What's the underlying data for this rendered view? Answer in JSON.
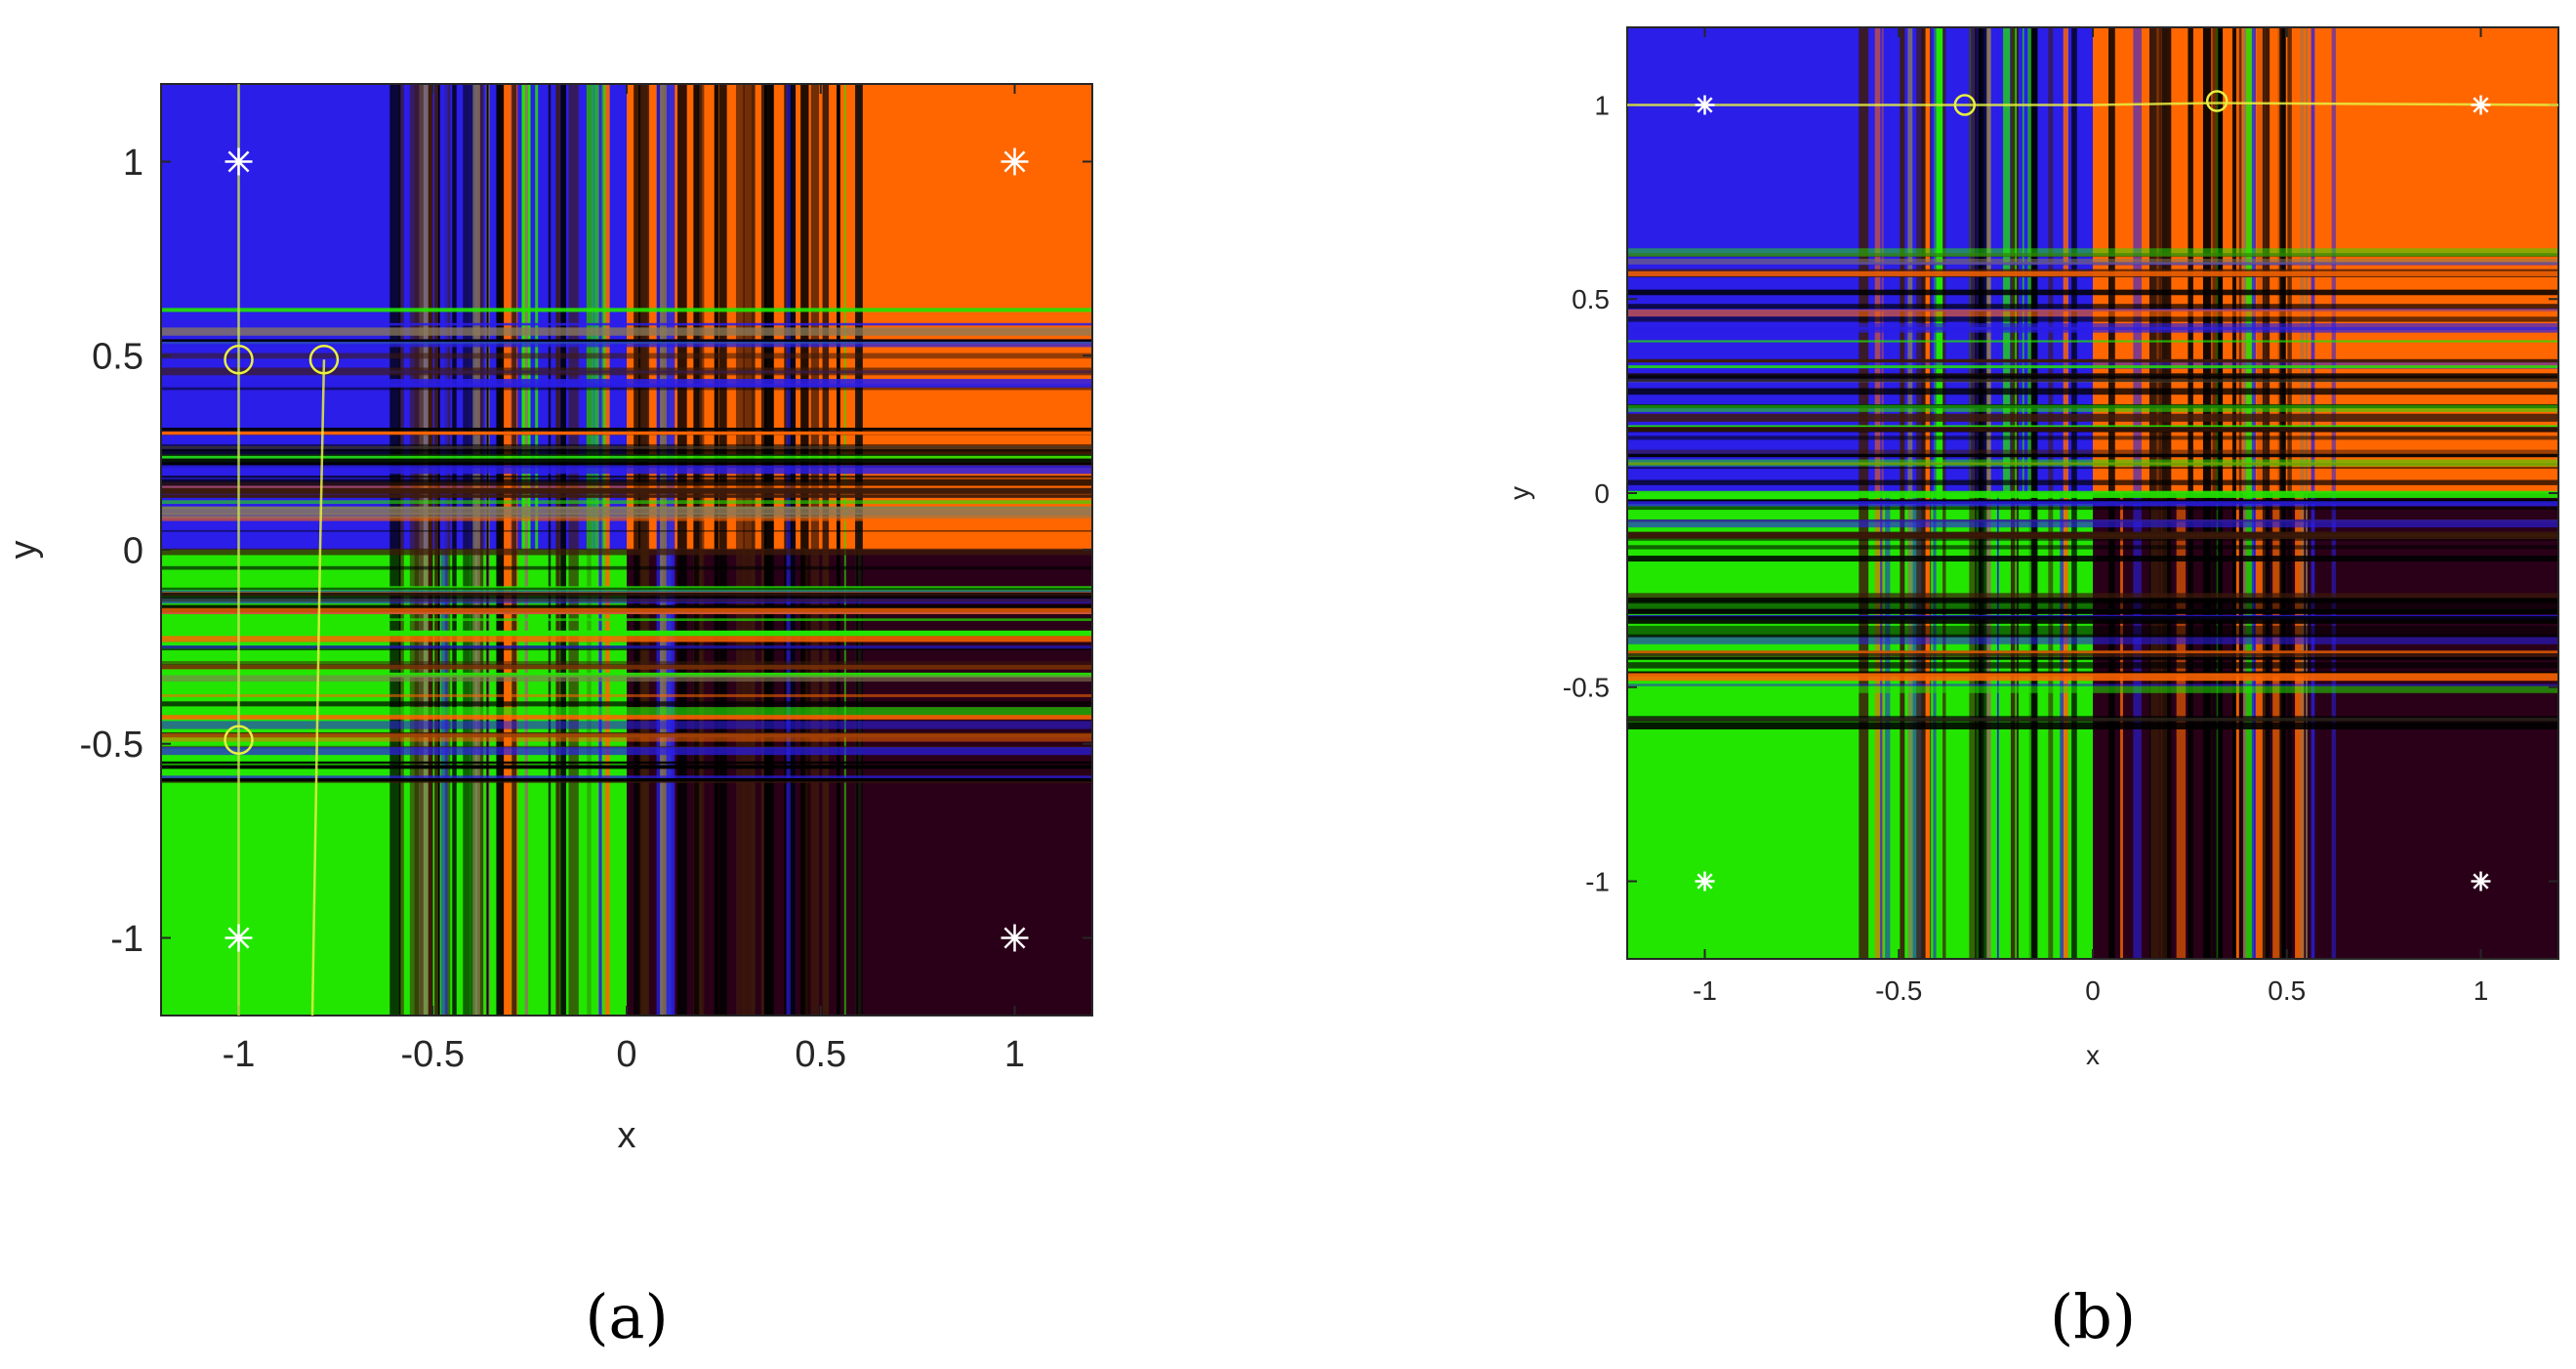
{
  "chart_data": [
    {
      "type": "heatmap",
      "panel_label": "(a)",
      "xlabel": "x",
      "ylabel": "y",
      "xlim": [
        -1.2,
        1.2
      ],
      "ylim": [
        -1.2,
        1.2
      ],
      "xticks": [
        -1,
        -0.5,
        0,
        0.5,
        1
      ],
      "yticks": [
        -1,
        -0.5,
        0,
        0.5,
        1
      ],
      "xtick_labels": [
        "-1",
        "-0.5",
        "0",
        "0.5",
        "1"
      ],
      "ytick_labels": [
        "-1",
        "-0.5",
        "0",
        "0.5",
        "1"
      ],
      "region_colors": {
        "top_left": "#2a1ee8",
        "top_right": "#ff6600",
        "bottom_left": "#22e600",
        "bottom_right": "#2a0018"
      },
      "stripe_region": [
        -0.62,
        0.62
      ],
      "stripe_colors": [
        "#000000",
        "#3d1a0a",
        "#ff6600",
        "#2a1ee8",
        "#22e600",
        "#8a7a5a"
      ],
      "star_points": [
        {
          "x": -1,
          "y": 1
        },
        {
          "x": 1,
          "y": 1
        },
        {
          "x": -1,
          "y": -1
        },
        {
          "x": 1,
          "y": -1
        }
      ],
      "circle_points": [
        {
          "x": -1,
          "y": 0.49
        },
        {
          "x": -0.78,
          "y": 0.49
        },
        {
          "x": -1,
          "y": -0.49
        }
      ],
      "trajectories": [
        {
          "x": [
            -1,
            -1,
            -1,
            -1,
            -1
          ],
          "y": [
            1.2,
            0.49,
            0,
            -0.49,
            -1.2
          ],
          "color": "#c8e050"
        },
        {
          "x": [
            -0.78,
            -0.79,
            -0.8,
            -0.81
          ],
          "y": [
            0.49,
            0,
            -0.6,
            -1.2
          ],
          "color": "#e8f040"
        }
      ]
    },
    {
      "type": "heatmap",
      "panel_label": "(b)",
      "xlabel": "x",
      "ylabel": "y",
      "xlim": [
        -1.2,
        1.2
      ],
      "ylim": [
        -1.2,
        1.2
      ],
      "xticks": [
        -1,
        -0.5,
        0,
        0.5,
        1
      ],
      "yticks": [
        -1,
        -0.5,
        0,
        0.5,
        1
      ],
      "xtick_labels": [
        "-1",
        "-0.5",
        "0",
        "0.5",
        "1"
      ],
      "ytick_labels": [
        "-1",
        "-0.5",
        "0",
        "0.5",
        "1"
      ],
      "region_colors": {
        "top_left": "#2a1ee8",
        "top_right": "#ff6600",
        "bottom_left": "#22e600",
        "bottom_right": "#2a0018"
      },
      "stripe_region": [
        -0.62,
        0.62
      ],
      "stripe_colors": [
        "#000000",
        "#3d1a0a",
        "#ff6600",
        "#2a1ee8",
        "#22e600",
        "#8a7a5a"
      ],
      "star_points": [
        {
          "x": -1,
          "y": 1
        },
        {
          "x": 1,
          "y": 1
        },
        {
          "x": -1,
          "y": -1
        },
        {
          "x": 1,
          "y": -1
        }
      ],
      "circle_points": [
        {
          "x": -0.33,
          "y": 1
        },
        {
          "x": 0.32,
          "y": 1.01
        }
      ],
      "trajectories": [
        {
          "x": [
            -1.2,
            -0.33,
            0,
            0.32,
            1.2
          ],
          "y": [
            1,
            1,
            1,
            1.005,
            1
          ],
          "color": "#e8f040"
        }
      ]
    }
  ]
}
